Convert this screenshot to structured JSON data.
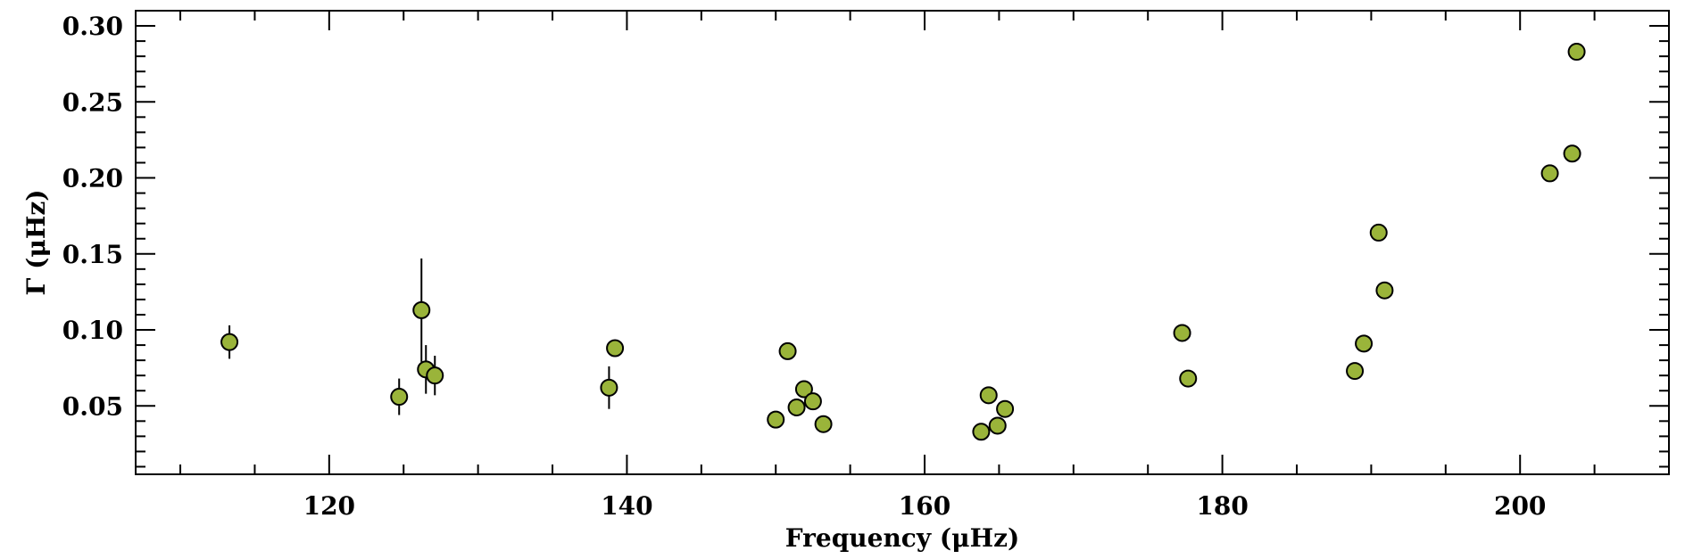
{
  "chart_data": {
    "type": "scatter",
    "title": "",
    "xlabel": "Frequency (μHz)",
    "ylabel": "Γ (μHz)",
    "xlim": [
      107,
      210
    ],
    "ylim": [
      0.005,
      0.31
    ],
    "x_ticks": [
      120,
      140,
      160,
      180,
      200
    ],
    "y_ticks": [
      0.05,
      0.1,
      0.15,
      0.2,
      0.25,
      0.3
    ],
    "x_tick_labels": [
      "120",
      "140",
      "160",
      "180",
      "200"
    ],
    "y_tick_labels": [
      "0.05",
      "0.10",
      "0.15",
      "0.20",
      "0.25",
      "0.30"
    ],
    "marker_color": "#9ab43a",
    "marker_edge_color": "#000000",
    "grid": false,
    "points": [
      {
        "x": 113.3,
        "y": 0.092,
        "err": 0.011
      },
      {
        "x": 124.7,
        "y": 0.056,
        "err": 0.012
      },
      {
        "x": 126.2,
        "y": 0.113,
        "err": 0.034
      },
      {
        "x": 126.5,
        "y": 0.074,
        "err": 0.016
      },
      {
        "x": 127.1,
        "y": 0.07,
        "err": 0.013
      },
      {
        "x": 138.8,
        "y": 0.062,
        "err": 0.014
      },
      {
        "x": 139.2,
        "y": 0.088,
        "err": 0
      },
      {
        "x": 150.0,
        "y": 0.041,
        "err": 0
      },
      {
        "x": 150.8,
        "y": 0.086,
        "err": 0
      },
      {
        "x": 151.4,
        "y": 0.049,
        "err": 0
      },
      {
        "x": 151.9,
        "y": 0.061,
        "err": 0
      },
      {
        "x": 152.5,
        "y": 0.053,
        "err": 0
      },
      {
        "x": 153.2,
        "y": 0.038,
        "err": 0
      },
      {
        "x": 163.8,
        "y": 0.033,
        "err": 0
      },
      {
        "x": 164.3,
        "y": 0.057,
        "err": 0
      },
      {
        "x": 164.9,
        "y": 0.037,
        "err": 0
      },
      {
        "x": 165.4,
        "y": 0.048,
        "err": 0
      },
      {
        "x": 177.3,
        "y": 0.098,
        "err": 0
      },
      {
        "x": 177.7,
        "y": 0.068,
        "err": 0
      },
      {
        "x": 188.9,
        "y": 0.073,
        "err": 0
      },
      {
        "x": 189.5,
        "y": 0.091,
        "err": 0
      },
      {
        "x": 190.5,
        "y": 0.164,
        "err": 0
      },
      {
        "x": 190.9,
        "y": 0.126,
        "err": 0
      },
      {
        "x": 202.0,
        "y": 0.203,
        "err": 0
      },
      {
        "x": 203.5,
        "y": 0.216,
        "err": 0
      },
      {
        "x": 203.8,
        "y": 0.283,
        "err": 0
      }
    ]
  }
}
